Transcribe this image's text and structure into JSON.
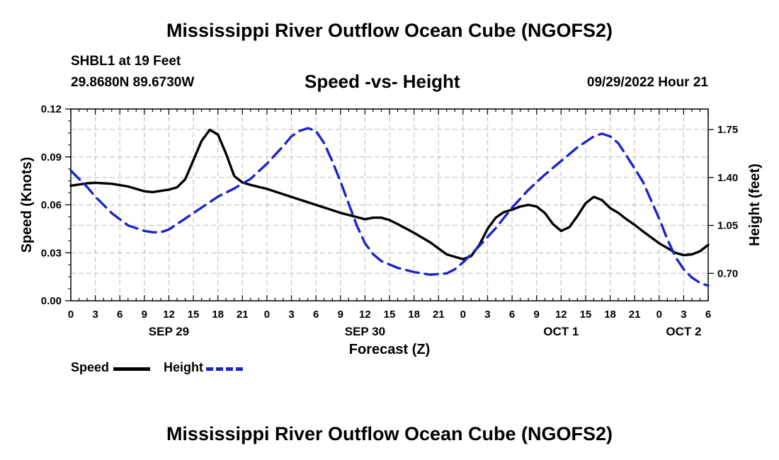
{
  "header": {
    "title": "Mississippi River Outflow Ocean Cube (NGOFS2)",
    "station": "SHBL1 at 19 Feet",
    "coords": "29.8680N  89.6730W",
    "subtitle": "Speed -vs- Height",
    "datetime": "09/29/2022 Hour 21"
  },
  "footer": {
    "title": "Mississippi River Outflow Ocean Cube (NGOFS2)"
  },
  "legend": {
    "speed_label": "Speed",
    "height_label": "Height",
    "speed_color": "#000000",
    "height_color": "#1b24c8"
  },
  "chart_data": {
    "type": "line",
    "title": "Speed -vs- Height",
    "xlabel": "Forecast (Z)",
    "ylabel": "Speed (Knots)",
    "ylabel_right": "Height (feet)",
    "xlim": [
      0,
      78
    ],
    "ylim": [
      0,
      0.12
    ],
    "ylim_right": [
      0.5,
      1.9
    ],
    "grid": true,
    "x_tick_values": [
      0,
      3,
      6,
      9,
      12,
      15,
      18,
      21,
      24,
      27,
      30,
      33,
      36,
      39,
      42,
      45,
      48,
      51,
      54,
      57,
      60,
      63,
      66,
      69,
      72,
      75,
      78
    ],
    "x_tick_labels": [
      "0",
      "3",
      "6",
      "9",
      "12",
      "15",
      "18",
      "21",
      "0",
      "3",
      "6",
      "9",
      "12",
      "15",
      "18",
      "21",
      "0",
      "3",
      "6",
      "9",
      "12",
      "15",
      "18",
      "21",
      "0",
      "3",
      "6"
    ],
    "y_tick_values": [
      0,
      0.03,
      0.06,
      0.09,
      0.12
    ],
    "y_tick_labels": [
      "0.00",
      "0.03",
      "0.06",
      "0.09",
      "0.12"
    ],
    "y_right_tick_values": [
      0.7,
      1.05,
      1.4,
      1.75
    ],
    "y_right_tick_labels": [
      "0.70",
      "1.05",
      "1.40",
      "1.75"
    ],
    "date_labels": [
      {
        "x": 12,
        "label": "SEP 29"
      },
      {
        "x": 36,
        "label": "SEP 30"
      },
      {
        "x": 60,
        "label": "OCT 1"
      },
      {
        "x": 75,
        "label": "OCT 2"
      }
    ],
    "series": [
      {
        "name": "Speed",
        "axis": "left",
        "style": "solid",
        "color": "#000000",
        "x": [
          0,
          2,
          3,
          5,
          7,
          9,
          10,
          12,
          13,
          14,
          15,
          16,
          17,
          18,
          19,
          20,
          21,
          22,
          24,
          27,
          30,
          33,
          36,
          37,
          38,
          39,
          40,
          42,
          44,
          46,
          48,
          49,
          50,
          51,
          52,
          53,
          54,
          55,
          56,
          57,
          58,
          59,
          60,
          61,
          62,
          63,
          64,
          65,
          66,
          67,
          68,
          69,
          70,
          72,
          74,
          75,
          76,
          77,
          78
        ],
        "values": [
          0.072,
          0.0735,
          0.0738,
          0.0732,
          0.0715,
          0.0685,
          0.068,
          0.0695,
          0.071,
          0.076,
          0.088,
          0.1,
          0.107,
          0.104,
          0.092,
          0.078,
          0.074,
          0.0725,
          0.07,
          0.065,
          0.06,
          0.055,
          0.051,
          0.052,
          0.052,
          0.0505,
          0.048,
          0.0425,
          0.0365,
          0.029,
          0.026,
          0.028,
          0.035,
          0.045,
          0.052,
          0.0555,
          0.057,
          0.059,
          0.06,
          0.059,
          0.055,
          0.048,
          0.0437,
          0.046,
          0.053,
          0.061,
          0.065,
          0.063,
          0.058,
          0.055,
          0.051,
          0.0475,
          0.0435,
          0.036,
          0.03,
          0.0285,
          0.029,
          0.031,
          0.035
        ]
      },
      {
        "name": "Height",
        "axis": "right",
        "style": "dashed",
        "color": "#1b24c8",
        "x": [
          0,
          2,
          3,
          5,
          7,
          9,
          10,
          11,
          12,
          14,
          16,
          18,
          20,
          22,
          24,
          26,
          27,
          28,
          29,
          30,
          31,
          32,
          33,
          34,
          35,
          36,
          37,
          38,
          40,
          42,
          44,
          46,
          47,
          48,
          50,
          52,
          54,
          56,
          58,
          60,
          62,
          64,
          65,
          66,
          67,
          68,
          70,
          72,
          73,
          74,
          75,
          76,
          77,
          78
        ],
        "values": [
          1.45,
          1.33,
          1.26,
          1.14,
          1.05,
          1.01,
          1.0,
          1.0,
          1.02,
          1.1,
          1.18,
          1.26,
          1.32,
          1.39,
          1.5,
          1.63,
          1.7,
          1.74,
          1.76,
          1.74,
          1.65,
          1.52,
          1.37,
          1.21,
          1.05,
          0.92,
          0.84,
          0.79,
          0.74,
          0.71,
          0.69,
          0.7,
          0.73,
          0.78,
          0.9,
          1.03,
          1.18,
          1.31,
          1.42,
          1.52,
          1.62,
          1.7,
          1.72,
          1.7,
          1.65,
          1.56,
          1.37,
          1.1,
          0.95,
          0.82,
          0.73,
          0.67,
          0.63,
          0.61
        ]
      }
    ]
  }
}
